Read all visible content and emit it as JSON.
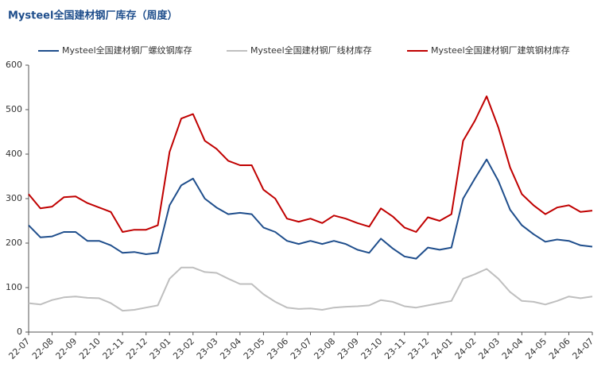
{
  "chart_data": {
    "type": "line",
    "title": "Mysteel全国建材钢厂库存（周度）",
    "categories": [
      "22-07",
      null,
      "22-08",
      null,
      "22-09",
      null,
      "22-10",
      null,
      "22-11",
      null,
      "22-12",
      null,
      "23-01",
      null,
      "23-02",
      null,
      "23-03",
      null,
      "23-04",
      null,
      "23-05",
      null,
      "23-06",
      null,
      "23-07",
      null,
      "23-08",
      null,
      "23-09",
      null,
      "23-10",
      null,
      "23-11",
      null,
      "23-12",
      null,
      "24-01",
      null,
      "24-02",
      null,
      "24-03",
      null,
      "24-04",
      null,
      "24-05",
      null,
      "24-06",
      null,
      "24-07"
    ],
    "series": [
      {
        "name": "Mysteel全国建材钢厂螺纹钢库存",
        "color": "#1f4e8c",
        "values": [
          240,
          213,
          215,
          225,
          225,
          205,
          205,
          195,
          178,
          180,
          175,
          178,
          285,
          330,
          345,
          300,
          280,
          265,
          268,
          265,
          235,
          225,
          205,
          198,
          205,
          198,
          205,
          198,
          185,
          178,
          210,
          188,
          170,
          165,
          190,
          185,
          190,
          300,
          345,
          388,
          340,
          275,
          240,
          220,
          203,
          208,
          205,
          195,
          192
        ]
      },
      {
        "name": "Mysteel全国建材钢厂线材库存",
        "color": "#bfbfbf",
        "values": [
          65,
          62,
          72,
          78,
          80,
          77,
          76,
          65,
          48,
          50,
          55,
          60,
          120,
          145,
          145,
          135,
          133,
          120,
          108,
          108,
          85,
          68,
          55,
          52,
          53,
          50,
          55,
          57,
          58,
          60,
          72,
          68,
          58,
          55,
          60,
          65,
          70,
          120,
          130,
          142,
          120,
          90,
          70,
          68,
          62,
          70,
          80,
          76,
          80
        ]
      },
      {
        "name": "Mysteel全国建材钢厂建筑钢材库存",
        "color": "#c00000",
        "values": [
          310,
          278,
          282,
          303,
          305,
          290,
          280,
          270,
          225,
          230,
          230,
          240,
          405,
          480,
          490,
          430,
          412,
          385,
          375,
          375,
          320,
          300,
          255,
          248,
          255,
          245,
          262,
          255,
          245,
          237,
          278,
          260,
          235,
          225,
          258,
          250,
          265,
          430,
          475,
          530,
          460,
          370,
          310,
          285,
          265,
          280,
          285,
          270,
          273
        ]
      }
    ],
    "ylim": [
      0,
      600
    ],
    "yticks": [
      0,
      100,
      200,
      300,
      400,
      500,
      600
    ],
    "grid": false
  }
}
